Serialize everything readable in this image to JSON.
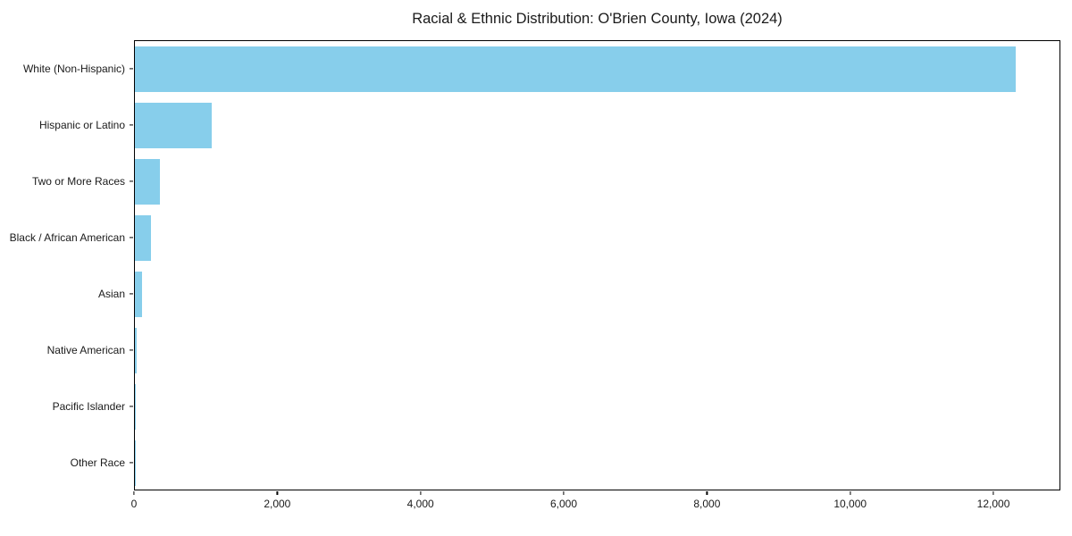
{
  "chart_data": {
    "type": "bar",
    "orientation": "horizontal",
    "title": "Racial & Ethnic Distribution: O'Brien County, Iowa (2024)",
    "categories": [
      "White (Non-Hispanic)",
      "Hispanic or Latino",
      "Two or More Races",
      "Black / African American",
      "Asian",
      "Native American",
      "Pacific Islander",
      "Other Race"
    ],
    "values": [
      12300,
      1070,
      350,
      230,
      95,
      25,
      10,
      10
    ],
    "x_tick_values": [
      0,
      2000,
      4000,
      6000,
      8000,
      10000,
      12000
    ],
    "x_tick_labels": [
      "0",
      "2,000",
      "4,000",
      "6,000",
      "8,000",
      "10,000",
      "12,000"
    ],
    "xlim": [
      0,
      12935
    ],
    "xlabel": "",
    "ylabel": "",
    "grid": false,
    "legend": null,
    "bar_color": "#87CEEB",
    "frame_color": "#000000",
    "text_color": "#1a1a1a",
    "background_color": "#FFFFFF"
  }
}
